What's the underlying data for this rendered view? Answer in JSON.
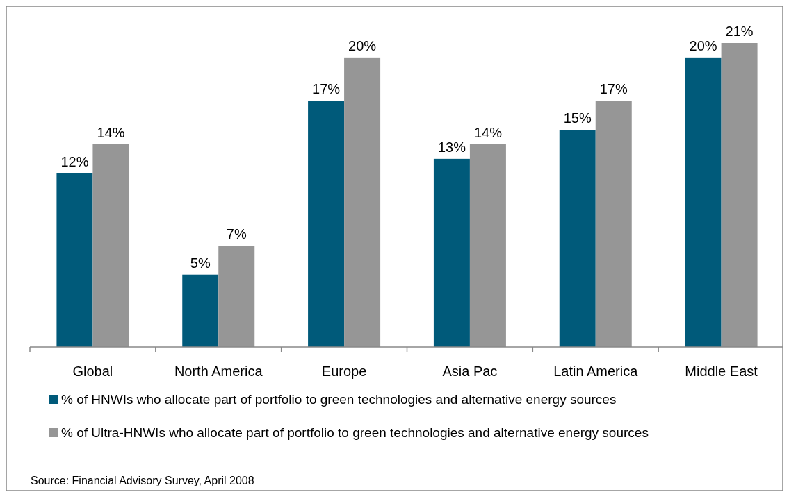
{
  "chart_data": {
    "type": "bar",
    "categories": [
      "Global",
      "North America",
      "Europe",
      "Asia Pac",
      "Latin America",
      "Middle East"
    ],
    "series": [
      {
        "name": "% of HNWIs who allocate part of portfolio to green technologies and alternative energy sources",
        "color": "#005a7a",
        "values": [
          12,
          5,
          17,
          13,
          15,
          20
        ],
        "value_labels": [
          "12%",
          "5%",
          "17%",
          "13%",
          "15%",
          "20%"
        ]
      },
      {
        "name": "% of Ultra-HNWIs who allocate part of portfolio to green technologies and alternative energy sources",
        "color": "#969696",
        "values": [
          14,
          7,
          20,
          14,
          17,
          21
        ],
        "value_labels": [
          "14%",
          "7%",
          "20%",
          "14%",
          "17%",
          "21%"
        ]
      }
    ],
    "legend": "bottom",
    "annotations": [
      "Source: Financial Advisory Survey, April 2008"
    ]
  }
}
